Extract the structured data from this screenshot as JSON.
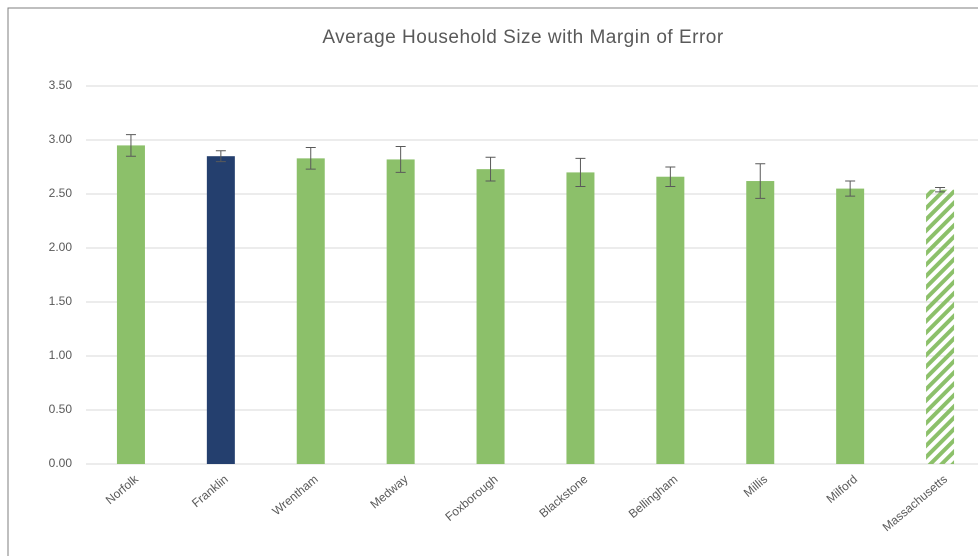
{
  "chart_data": {
    "type": "bar",
    "title": "Average Household Size with Margin of Error",
    "categories": [
      "Norfolk",
      "Franklin",
      "Wrentham",
      "Medway",
      "Foxborough",
      "Blackstone",
      "Bellingham",
      "Millis",
      "Milford",
      "Massachusetts"
    ],
    "values": [
      2.95,
      2.85,
      2.83,
      2.82,
      2.73,
      2.7,
      2.66,
      2.62,
      2.55,
      2.54
    ],
    "errors": [
      0.1,
      0.05,
      0.1,
      0.12,
      0.11,
      0.13,
      0.09,
      0.16,
      0.07,
      0.02
    ],
    "colors": [
      "#8cc06a",
      "#243f6e",
      "#8cc06a",
      "#8cc06a",
      "#8cc06a",
      "#8cc06a",
      "#8cc06a",
      "#8cc06a",
      "#8cc06a",
      "#8cc06a"
    ],
    "hatch": [
      false,
      false,
      false,
      false,
      false,
      false,
      false,
      false,
      false,
      true
    ],
    "ylim": [
      0,
      3.5
    ],
    "yticks": [
      {
        "value": 0,
        "label": "0.00"
      },
      {
        "value": 0.5,
        "label": "0.50"
      },
      {
        "value": 1,
        "label": "1.00"
      },
      {
        "value": 1.5,
        "label": "1.50"
      },
      {
        "value": 2,
        "label": "2.00"
      },
      {
        "value": 2.5,
        "label": "2.50"
      },
      {
        "value": 3,
        "label": "3.00"
      },
      {
        "value": 3.5,
        "label": "3.50"
      }
    ],
    "grid": true
  }
}
